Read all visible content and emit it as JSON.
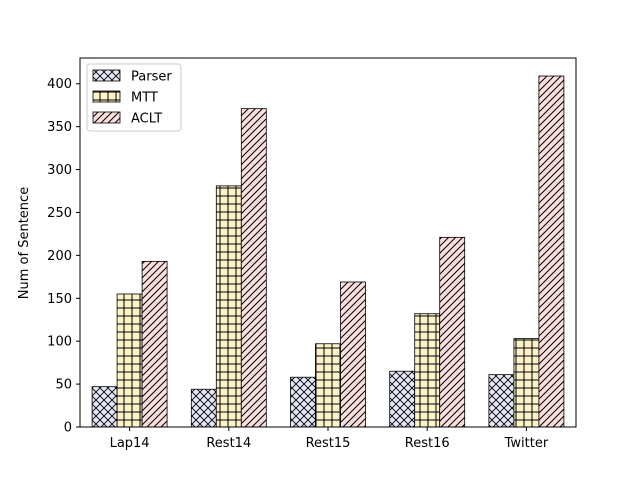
{
  "chart_data": {
    "type": "bar",
    "categories": [
      "Lap14",
      "Rest14",
      "Rest15",
      "Rest16",
      "Twitter"
    ],
    "series": [
      {
        "name": "Parser",
        "values": [
          47,
          44,
          58,
          65,
          61
        ],
        "fill": "#e3e6f5",
        "hatch": "crosshatch-diagonal"
      },
      {
        "name": "MTT",
        "values": [
          155,
          281,
          97,
          132,
          103
        ],
        "fill": "#fdf3c8",
        "hatch": "grid"
      },
      {
        "name": " ACLT",
        "values": [
          193,
          371,
          169,
          221,
          409
        ],
        "fill": "#fbdede",
        "hatch": "diagonal"
      }
    ],
    "xlabel": "",
    "ylabel": "Num of Sentence",
    "ylim": [
      0,
      430
    ],
    "yticks": [
      0,
      50,
      100,
      150,
      200,
      250,
      300,
      350,
      400
    ],
    "grid": false,
    "legend_position": "upper-left"
  }
}
